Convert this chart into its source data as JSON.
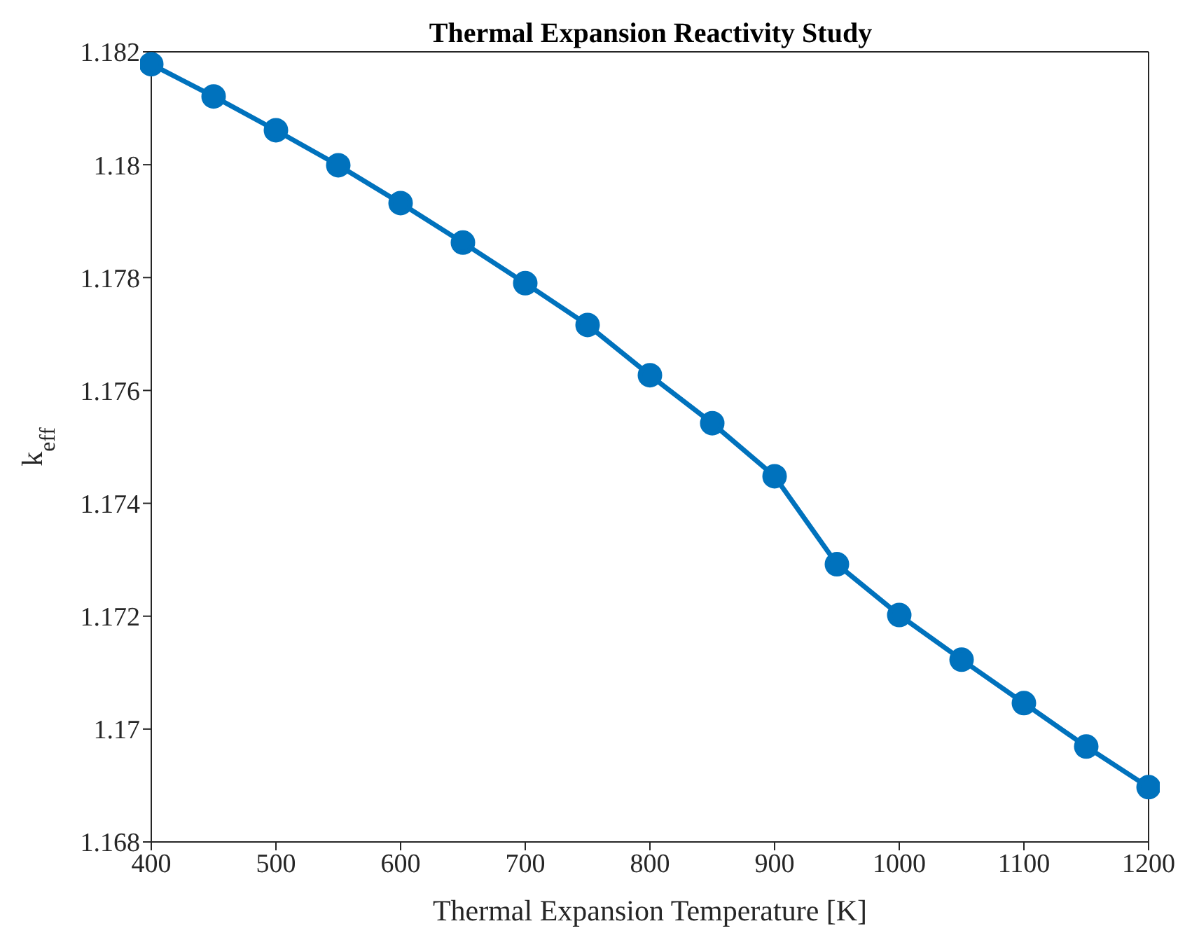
{
  "chart_data": {
    "type": "line",
    "title": "Thermal Expansion Reactivity Study",
    "xlabel": "Thermal Expansion Temperature [K]",
    "ylabel": "k$_{eff}$",
    "x": [
      400,
      450,
      500,
      550,
      600,
      650,
      700,
      750,
      800,
      850,
      900,
      950,
      1000,
      1050,
      1100,
      1150,
      1200
    ],
    "series": [
      {
        "color": "#0072bd",
        "values": [
          1.18178,
          1.18121,
          1.18061,
          1.17999,
          1.17932,
          1.17862,
          1.1779,
          1.17716,
          1.17627,
          1.17542,
          1.17448,
          1.17292,
          1.17202,
          1.17123,
          1.17046,
          1.16969,
          1.16897
        ]
      }
    ],
    "xlim": [
      400,
      1200
    ],
    "xticks": [
      400,
      500,
      600,
      700,
      800,
      900,
      1000,
      1100,
      1200
    ],
    "ylim": [
      1.168,
      1.182
    ],
    "yticks": [
      1.168,
      1.17,
      1.172,
      1.174,
      1.176,
      1.178,
      1.18,
      1.182
    ],
    "grid": false,
    "legend": false,
    "marker": "circle",
    "line_style": "solid"
  }
}
